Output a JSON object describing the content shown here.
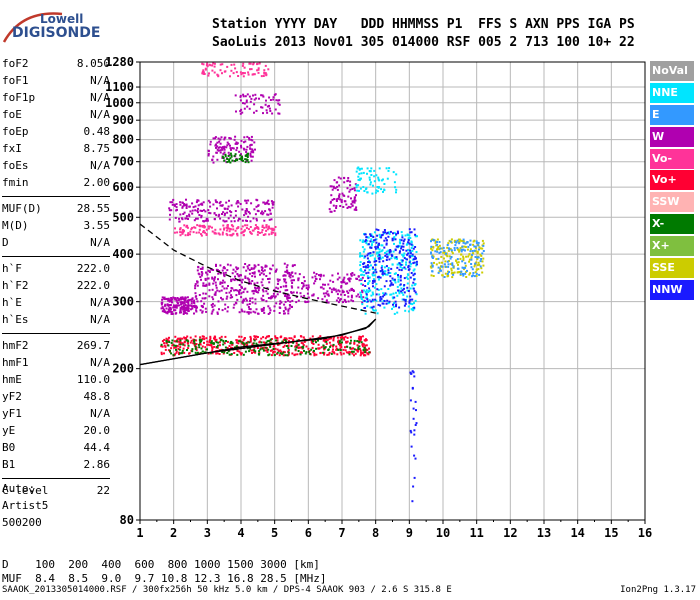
{
  "logo": {
    "line1": "Lowell",
    "line2": "DIGISONDE"
  },
  "header": {
    "line1": "Station YYYY DAY   DDD HHMMSS P1  FFS S AXN PPS IGA PS",
    "line2": "SaoLuis 2013 Nov01 305 014000 RSF 005 2 713 100 10+ 22"
  },
  "params": [
    {
      "key": "foF2",
      "value": "8.050"
    },
    {
      "key": "foF1",
      "value": "N/A"
    },
    {
      "key": "foF1p",
      "value": "N/A"
    },
    {
      "key": "foE",
      "value": "N/A"
    },
    {
      "key": "foEp",
      "value": "0.48"
    },
    {
      "key": "fxI",
      "value": "8.75"
    },
    {
      "key": "foEs",
      "value": "N/A"
    },
    {
      "key": "fmin",
      "value": "2.00"
    },
    {
      "key": "MUF(D)",
      "value": "28.55"
    },
    {
      "key": "M(D)",
      "value": "3.55"
    },
    {
      "key": "D",
      "value": "N/A"
    },
    {
      "key": "h`F",
      "value": "222.0"
    },
    {
      "key": "h`F2",
      "value": "222.0"
    },
    {
      "key": "h`E",
      "value": "N/A"
    },
    {
      "key": "h`Es",
      "value": "N/A"
    },
    {
      "key": "hmF2",
      "value": "269.7"
    },
    {
      "key": "hmF1",
      "value": "N/A"
    },
    {
      "key": "hmE",
      "value": "110.0"
    },
    {
      "key": "yF2",
      "value": "48.8"
    },
    {
      "key": "yF1",
      "value": "N/A"
    },
    {
      "key": "yE",
      "value": "20.0"
    },
    {
      "key": "B0",
      "value": "44.4"
    },
    {
      "key": "B1",
      "value": "2.86"
    },
    {
      "key": "C-level",
      "value": "22"
    }
  ],
  "auto": {
    "line1": "Auto:",
    "line2": "Artist5",
    "line3": "500200"
  },
  "dtable": {
    "line1": "D    100  200  400  600  800 1000 1500 3000 [km]",
    "line2": "MUF  8.4  8.5  9.0  9.7 10.8 12.3 16.8 28.5 [MHz]"
  },
  "footer": {
    "file": "SAAOK_2013305014000.RSF / 300fx256h 50 kHz 5.0 km / DPS-4 SAAOK 903 / 2.6 S 315.8 E",
    "version": "Ion2Png 1.3.17"
  },
  "legend": [
    {
      "label": "NoVal",
      "color": "#a0a0a0"
    },
    {
      "label": "NNE",
      "color": "#00e5ff"
    },
    {
      "label": "E",
      "color": "#3399ff"
    },
    {
      "label": "W",
      "color": "#b000b0"
    },
    {
      "label": "Vo-",
      "color": "#ff3399"
    },
    {
      "label": "Vo+",
      "color": "#ff0033"
    },
    {
      "label": "SSW",
      "color": "#ffb3b3"
    },
    {
      "label": "X-",
      "color": "#007a00"
    },
    {
      "label": "X+",
      "color": "#7fbf3f"
    },
    {
      "label": "SSE",
      "color": "#cccc00"
    },
    {
      "label": "NNW",
      "color": "#1a1aff"
    }
  ],
  "chart_data": {
    "type": "scatter",
    "title": "",
    "xlabel": "",
    "ylabel": "",
    "xlim": [
      1,
      16
    ],
    "ylim": [
      80,
      1280
    ],
    "y_scale": "log",
    "grid": true,
    "legend_position": "right",
    "x_ticks": [
      1,
      2,
      3,
      4,
      5,
      6,
      7,
      8,
      9,
      10,
      11,
      12,
      13,
      14,
      15,
      16
    ],
    "y_ticks": [
      80,
      200,
      300,
      400,
      500,
      600,
      700,
      800,
      900,
      1000,
      1100,
      1280
    ],
    "clusters": [
      {
        "name": "W",
        "f_range": [
          1.6,
          2.6
        ],
        "h_range": [
          280,
          310
        ],
        "density": 180
      },
      {
        "name": "W",
        "f_range": [
          2.6,
          5.6
        ],
        "h_range": [
          280,
          380
        ],
        "density": 420
      },
      {
        "name": "W",
        "f_range": [
          5.6,
          7.6
        ],
        "h_range": [
          300,
          360
        ],
        "density": 150
      },
      {
        "name": "W",
        "f_range": [
          1.8,
          5.0
        ],
        "h_range": [
          490,
          560
        ],
        "density": 200
      },
      {
        "name": "Vo+",
        "f_range": [
          1.6,
          7.8
        ],
        "h_range": [
          218,
          245
        ],
        "density": 500
      },
      {
        "name": "X-",
        "f_range": [
          1.6,
          7.8
        ],
        "h_range": [
          218,
          240
        ],
        "density": 200
      },
      {
        "name": "Vo-",
        "f_range": [
          2.0,
          5.0
        ],
        "h_range": [
          450,
          480
        ],
        "density": 160
      },
      {
        "name": "NNE",
        "f_range": [
          7.5,
          9.2
        ],
        "h_range": [
          280,
          460
        ],
        "density": 300
      },
      {
        "name": "NNW",
        "f_range": [
          7.6,
          9.2
        ],
        "h_range": [
          290,
          470
        ],
        "density": 250
      },
      {
        "name": "SSE",
        "f_range": [
          9.6,
          11.2
        ],
        "h_range": [
          350,
          440
        ],
        "density": 160
      },
      {
        "name": "E",
        "f_range": [
          9.6,
          11.2
        ],
        "h_range": [
          350,
          440
        ],
        "density": 120
      },
      {
        "name": "W",
        "f_range": [
          6.6,
          7.4
        ],
        "h_range": [
          520,
          640
        ],
        "density": 80
      },
      {
        "name": "NNE",
        "f_range": [
          7.4,
          8.6
        ],
        "h_range": [
          580,
          680
        ],
        "density": 70
      },
      {
        "name": "W",
        "f_range": [
          3.0,
          4.4
        ],
        "h_range": [
          700,
          820
        ],
        "density": 120
      },
      {
        "name": "X-",
        "f_range": [
          3.4,
          4.2
        ],
        "h_range": [
          700,
          740
        ],
        "density": 40
      },
      {
        "name": "Vo-",
        "f_range": [
          2.8,
          4.8
        ],
        "h_range": [
          1180,
          1280
        ],
        "density": 80
      },
      {
        "name": "W",
        "f_range": [
          3.8,
          5.2
        ],
        "h_range": [
          940,
          1060
        ],
        "density": 60
      },
      {
        "name": "NNW",
        "f_range": [
          9.0,
          9.2
        ],
        "h_range": [
          85,
          200
        ],
        "density": 25
      }
    ],
    "lines": [
      {
        "name": "trace-upper",
        "style": "solid",
        "points": [
          [
            1,
            205
          ],
          [
            3,
            220
          ],
          [
            5,
            232
          ],
          [
            7,
            245
          ],
          [
            7.8,
            258
          ],
          [
            8,
            270
          ]
        ]
      },
      {
        "name": "trace-lower",
        "style": "solid",
        "points": [
          [
            1,
            205
          ],
          [
            4,
            228
          ],
          [
            6.5,
            240
          ],
          [
            7.7,
            255
          ],
          [
            8,
            270
          ]
        ]
      },
      {
        "name": "profile",
        "style": "dashed",
        "points": [
          [
            1,
            480
          ],
          [
            2,
            410
          ],
          [
            3,
            370
          ],
          [
            4,
            340
          ],
          [
            5,
            320
          ],
          [
            6,
            305
          ],
          [
            7,
            292
          ],
          [
            8,
            280
          ]
        ]
      }
    ]
  }
}
